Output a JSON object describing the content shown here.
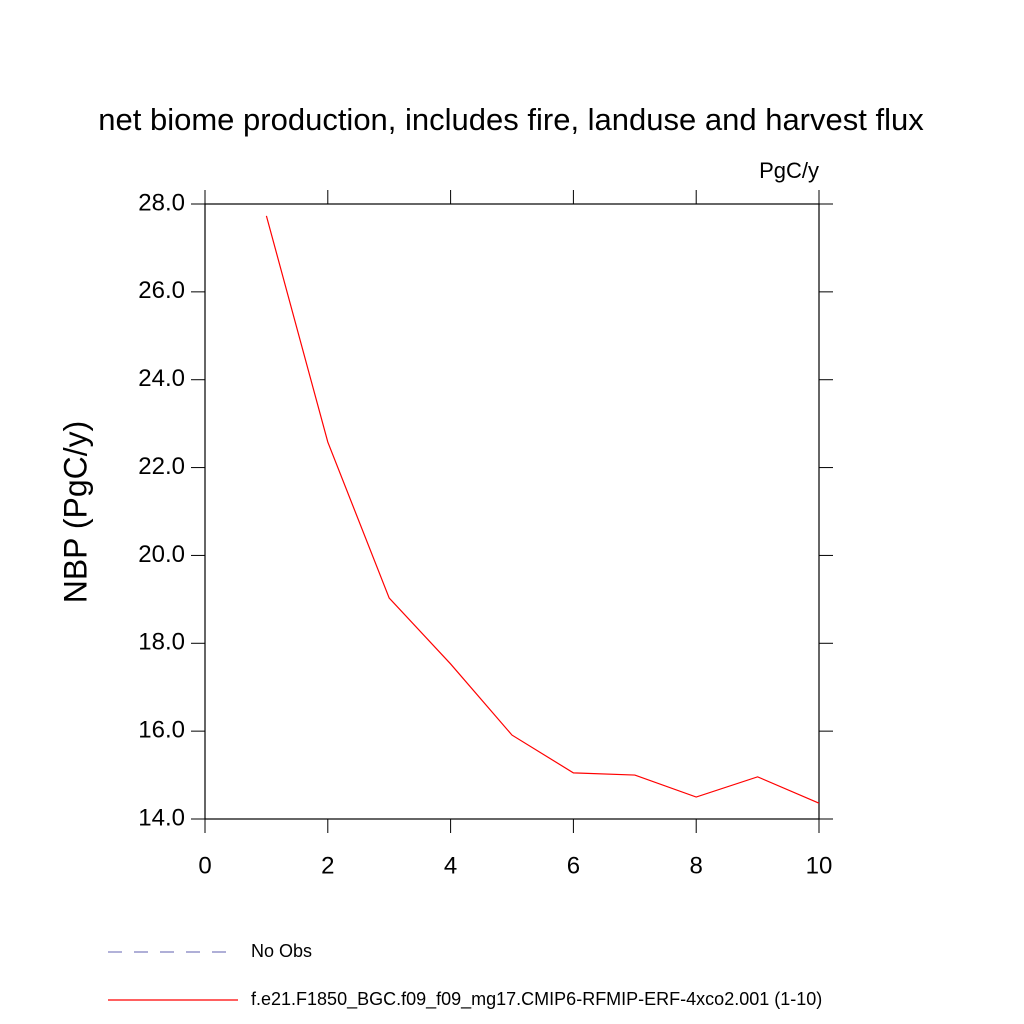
{
  "chart_data": {
    "type": "line",
    "title": "net biome production, includes fire, landuse and harvest flux",
    "units_label": "PgC/y",
    "y_label": "NBP  (PgC/y)",
    "x": [
      1,
      2,
      3,
      4,
      5,
      6,
      7,
      8,
      9,
      10
    ],
    "series": [
      {
        "name": "No Obs",
        "color": "#7f7fbf",
        "style": "dashed",
        "values": [
          null,
          null,
          null,
          null,
          null,
          null,
          null,
          null,
          null,
          null
        ]
      },
      {
        "name": "f.e21.F1850_BGC.f09_f09_mg17.CMIP6-RFMIP-ERF-4xco2.001 (1-10)",
        "color": "#ff0000",
        "style": "solid",
        "values": [
          27.73,
          22.58,
          19.03,
          17.53,
          15.91,
          15.05,
          15.0,
          14.5,
          14.96,
          14.36
        ]
      }
    ],
    "xlim": [
      0,
      10
    ],
    "xticks": [
      0,
      2,
      4,
      6,
      8,
      10
    ],
    "ylim": [
      14,
      28
    ],
    "yticks": [
      {
        "value": 14,
        "label": "14.0"
      },
      {
        "value": 16,
        "label": "16.0"
      },
      {
        "value": 18,
        "label": "18.0"
      },
      {
        "value": 20,
        "label": "20.0"
      },
      {
        "value": 22,
        "label": "22.0"
      },
      {
        "value": 24,
        "label": "24.0"
      },
      {
        "value": 26,
        "label": "26.0"
      },
      {
        "value": 28,
        "label": "28.0"
      }
    ],
    "grid": false
  }
}
